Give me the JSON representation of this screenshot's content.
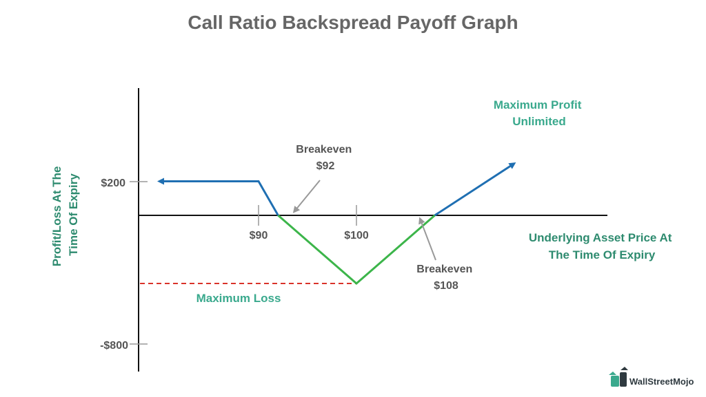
{
  "chart_data": {
    "type": "line",
    "title": "Call Ratio Backspread Payoff Graph",
    "xlabel": [
      "Underlying Asset Price At",
      "The Time Of Expiry"
    ],
    "ylabel": [
      "Profit/Loss At The",
      "Time Of Expiry"
    ],
    "x_ticks": [
      {
        "value": 90,
        "label": "$90"
      },
      {
        "value": 100,
        "label": "$100"
      }
    ],
    "y_ticks": [
      {
        "value": 200,
        "label": "$200"
      },
      {
        "value": -800,
        "label": "-$800"
      }
    ],
    "series": [
      {
        "segment": "profit-left",
        "color": "#1f6fb2",
        "x": [
          80,
          90,
          92
        ],
        "y": [
          200,
          200,
          0
        ]
      },
      {
        "segment": "loss-zone",
        "color": "#3cb54a",
        "x": [
          92,
          100,
          108
        ],
        "y": [
          0,
          -400,
          0
        ]
      },
      {
        "segment": "profit-right",
        "color": "#1f6fb2",
        "x": [
          108,
          116
        ],
        "y": [
          0,
          300
        ]
      }
    ],
    "max_loss_level": -400,
    "max_loss_color": "#d9322a",
    "breakevens": [
      92,
      108
    ],
    "annotations": {
      "breakeven_low": [
        "Breakeven",
        "$92"
      ],
      "breakeven_high": [
        "Breakeven",
        "$108"
      ],
      "max_profit": [
        "Maximum Profit",
        "Unlimited"
      ],
      "max_loss": "Maximum Loss"
    }
  },
  "brand": {
    "name": "WallStreetMojo"
  }
}
